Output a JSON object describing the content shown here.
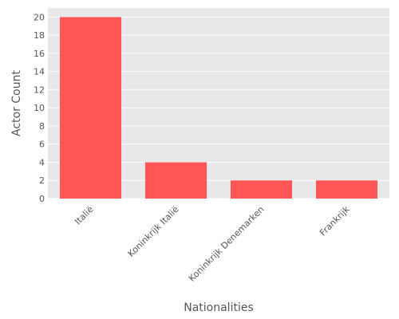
{
  "chart_data": {
    "type": "bar",
    "title": "",
    "xlabel": "Nationalities",
    "ylabel": "Actor Count",
    "categories": [
      "Italië",
      "Koninkrijk Italië",
      "Koninkrijk Denemarken",
      "Frankrijk"
    ],
    "values": [
      20,
      4,
      2,
      2
    ],
    "ylim": [
      0,
      21
    ],
    "yticks": [
      0,
      2,
      4,
      6,
      8,
      10,
      12,
      14,
      16,
      18,
      20
    ],
    "grid": true,
    "legend": "none",
    "colors": {
      "bar": "#ff5555",
      "plot_background": "#e8e8e8",
      "grid": "#ffffff",
      "text": "#555555"
    }
  }
}
